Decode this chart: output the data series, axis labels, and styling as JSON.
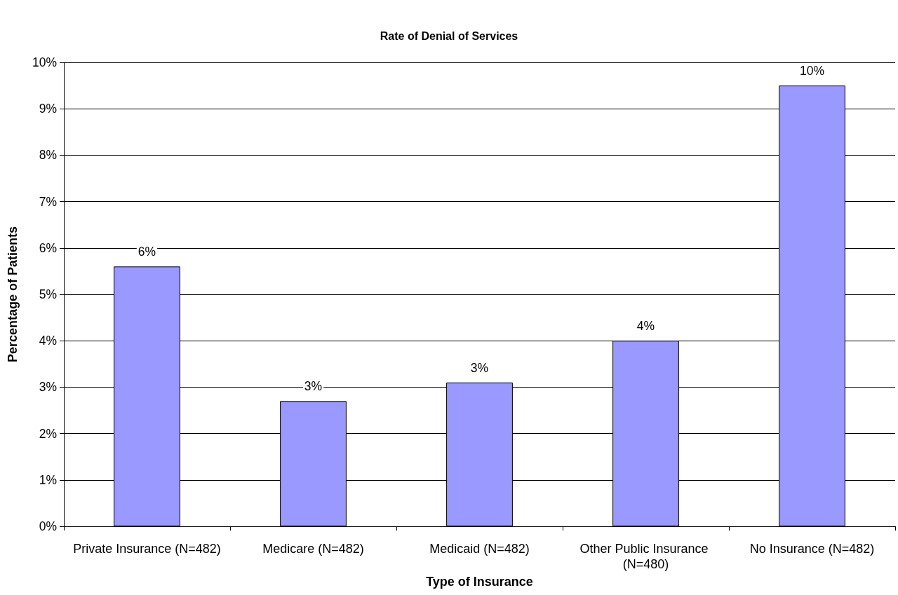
{
  "chart_data": {
    "type": "bar",
    "title": "Rate of Denial of Services",
    "xlabel": "Type of Insurance",
    "ylabel": "Percentage of Patients",
    "categories": [
      "Private Insurance (N=482)",
      "Medicare (N=482)",
      "Medicaid (N=482)",
      "Other Public Insurance (N=480)",
      "No Insurance (N=482)"
    ],
    "values": [
      5.6,
      2.7,
      3.1,
      4.0,
      9.5
    ],
    "color": "#9999ff",
    "value_labels": [
      "6%",
      "3%",
      "3%",
      "4%",
      "10%"
    ],
    "ylim": [
      0,
      10
    ],
    "yticks": [
      {
        "value": 0,
        "label": "0%"
      },
      {
        "value": 1,
        "label": "1%"
      },
      {
        "value": 2,
        "label": "2%"
      },
      {
        "value": 3,
        "label": "3%"
      },
      {
        "value": 4,
        "label": "4%"
      },
      {
        "value": 5,
        "label": "5%"
      },
      {
        "value": 6,
        "label": "6%"
      },
      {
        "value": 7,
        "label": "7%"
      },
      {
        "value": 8,
        "label": "8%"
      },
      {
        "value": 9,
        "label": "9%"
      },
      {
        "value": 10,
        "label": "10%"
      }
    ],
    "grid": "y"
  }
}
